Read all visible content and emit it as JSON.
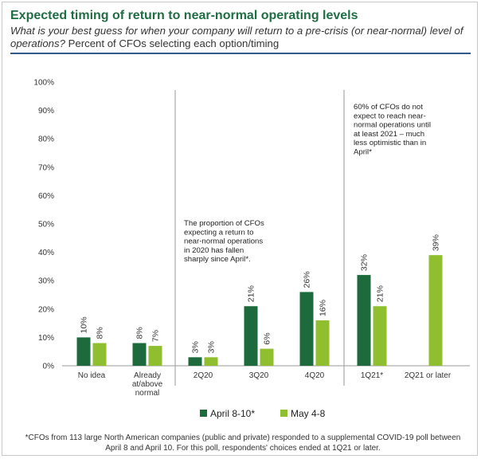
{
  "title": "Expected timing of return to near-normal operating levels",
  "subtitle": {
    "question": "What is your best guess for when your company will return to a pre-crisis (or near-normal) level of operations?",
    "note": "Percent of CFOs selecting each option/timing"
  },
  "chart_data": {
    "type": "bar",
    "ylim": [
      0,
      100
    ],
    "yticks": [
      "0%",
      "10%",
      "20%",
      "30%",
      "40%",
      "50%",
      "60%",
      "70%",
      "80%",
      "90%",
      "100%"
    ],
    "categories": [
      [
        "No idea"
      ],
      [
        "Already",
        "at/above",
        "normal"
      ],
      [
        "2Q20"
      ],
      [
        "3Q20"
      ],
      [
        "4Q20"
      ],
      [
        "1Q21*"
      ],
      [
        "2Q21 or later"
      ]
    ],
    "series": [
      {
        "name": "April 8-10*",
        "color": "#1d6b3c",
        "values": [
          10,
          8,
          3,
          21,
          26,
          32,
          null
        ],
        "labels": [
          "10%",
          "8%",
          "3%",
          "21%",
          "26%",
          "32%",
          ""
        ]
      },
      {
        "name": "May 4-8",
        "color": "#8fbe2e",
        "values": [
          8,
          7,
          3,
          6,
          16,
          21,
          39
        ],
        "labels": [
          "8%",
          "7%",
          "3%",
          "6%",
          "16%",
          "21%",
          "39%"
        ]
      }
    ],
    "annotations": [
      {
        "lines": [
          "The proportion of CFOs",
          "expecting a return to",
          "near-normal operations",
          "in 2020 has fallen",
          "sharply since April*."
        ]
      },
      {
        "lines": [
          "60% of CFOs do not",
          "expect to reach near-",
          "normal operations until",
          "at least 2021 – much",
          "less optimistic than in",
          "April*"
        ]
      }
    ]
  },
  "footnote": "*CFOs from 113 large North American companies (public and private) responded to a supplemental COVID-19 poll between April 8 and April 10. For this poll, respondents' choices ended at 1Q21 or later."
}
